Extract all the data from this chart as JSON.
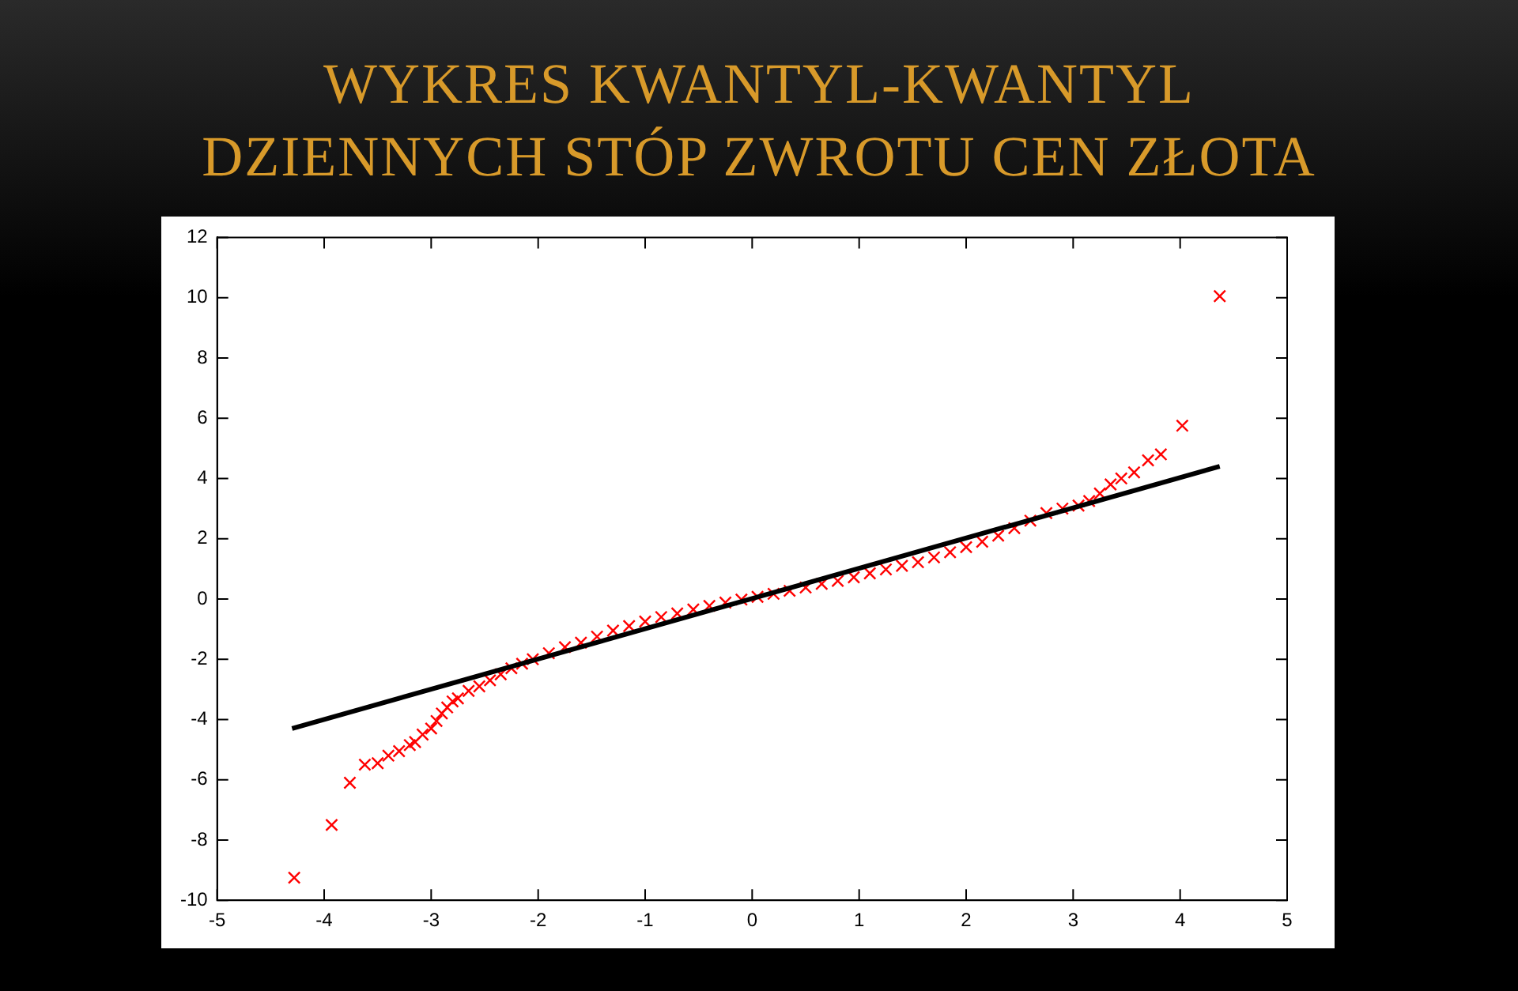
{
  "chart_data": {
    "type": "scatter",
    "title": "WYKRES KWANTYL-KWANTYL\nDZIENNYCH STÓP ZWROTU CEN ZŁOTA",
    "xlim": [
      -5,
      5
    ],
    "xticks": [
      -5,
      -4,
      -3,
      -2,
      -1,
      0,
      1,
      2,
      3,
      4,
      5
    ],
    "ylim": [
      -10,
      12
    ],
    "yticks": [
      -10,
      -8,
      -6,
      -4,
      -2,
      0,
      2,
      4,
      6,
      8,
      10,
      12
    ],
    "grid": false,
    "legend": false,
    "marker": "cross",
    "series": [
      {
        "color": "#ff0000",
        "x": [
          -4.28,
          -3.93,
          -3.76,
          -3.62,
          -3.5,
          -3.4,
          -3.3,
          -3.2,
          -3.15,
          -3.08,
          -3.0,
          -2.95,
          -2.9,
          -2.85,
          -2.8,
          -2.75,
          -2.65,
          -2.55,
          -2.45,
          -2.35,
          -2.25,
          -2.15,
          -2.05,
          -1.9,
          -1.75,
          -1.6,
          -1.45,
          -1.3,
          -1.15,
          -1.0,
          -0.85,
          -0.7,
          -0.55,
          -0.4,
          -0.25,
          -0.1,
          0.05,
          0.2,
          0.35,
          0.5,
          0.65,
          0.8,
          0.95,
          1.1,
          1.25,
          1.4,
          1.55,
          1.7,
          1.85,
          2.0,
          2.15,
          2.3,
          2.45,
          2.6,
          2.75,
          2.9,
          3.05,
          3.15,
          3.25,
          3.35,
          3.45,
          3.57,
          3.7,
          3.82,
          4.02,
          4.37
        ],
        "values": [
          -9.25,
          -7.5,
          -6.1,
          -5.5,
          -5.45,
          -5.2,
          -5.05,
          -4.85,
          -4.75,
          -4.5,
          -4.3,
          -4.05,
          -3.8,
          -3.6,
          -3.4,
          -3.3,
          -3.05,
          -2.9,
          -2.7,
          -2.5,
          -2.3,
          -2.15,
          -2.0,
          -1.8,
          -1.6,
          -1.45,
          -1.25,
          -1.05,
          -0.9,
          -0.75,
          -0.6,
          -0.48,
          -0.35,
          -0.23,
          -0.12,
          -0.02,
          0.07,
          0.17,
          0.27,
          0.38,
          0.5,
          0.6,
          0.72,
          0.85,
          0.98,
          1.1,
          1.22,
          1.38,
          1.55,
          1.72,
          1.9,
          2.1,
          2.35,
          2.6,
          2.85,
          3.0,
          3.1,
          3.25,
          3.5,
          3.8,
          4.0,
          4.2,
          4.6,
          4.8,
          5.75,
          10.05
        ]
      },
      {
        "type": "line",
        "color": "#000000",
        "marker": "none",
        "x": [
          -4.3,
          4.37
        ],
        "values": [
          -4.3,
          4.4
        ]
      }
    ]
  }
}
